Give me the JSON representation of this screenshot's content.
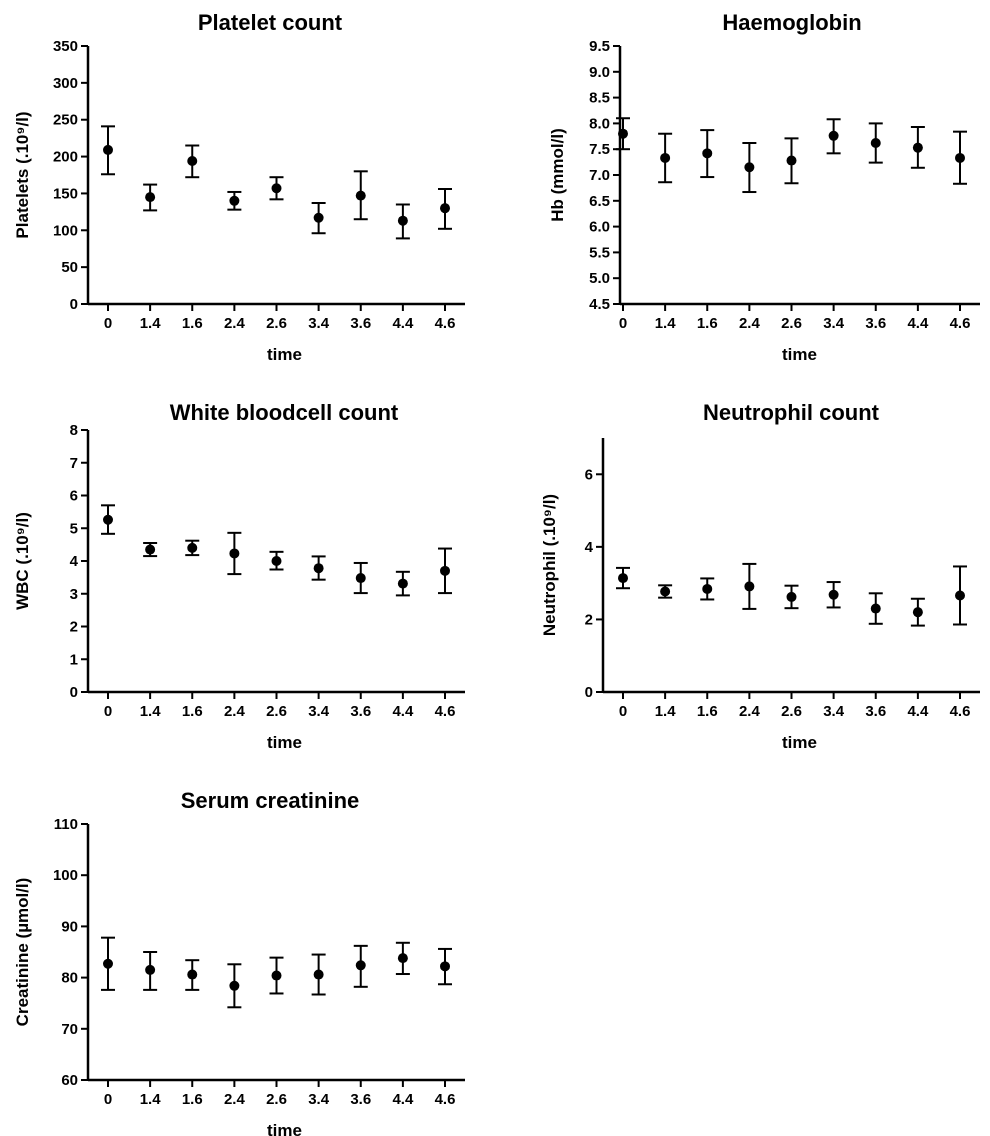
{
  "chart_data": [
    {
      "type": "scatter",
      "title": "Platelet count",
      "xlabel": "time",
      "ylabel": "Platelets (.10⁹/l)",
      "categories": [
        "0",
        "1.4",
        "1.6",
        "2.4",
        "2.6",
        "3.4",
        "3.6",
        "4.4",
        "4.6"
      ],
      "yticks": [
        "0",
        "50",
        "100",
        "150",
        "200",
        "250",
        "300",
        "350"
      ],
      "ylim": [
        0,
        350
      ],
      "values": [
        209,
        145,
        194,
        140,
        157,
        117,
        147,
        113,
        130
      ],
      "err_upper": [
        241,
        162,
        215,
        152,
        172,
        137,
        180,
        135,
        156
      ],
      "err_lower": [
        176,
        127,
        172,
        128,
        142,
        96,
        115,
        89,
        102
      ]
    },
    {
      "type": "scatter",
      "title": "Haemoglobin",
      "xlabel": "time",
      "ylabel": "Hb (mmol/l)",
      "categories": [
        "0",
        "1.4",
        "1.6",
        "2.4",
        "2.6",
        "3.4",
        "3.6",
        "4.4",
        "4.6"
      ],
      "yticks": [
        "4.5",
        "5.0",
        "5.5",
        "6.0",
        "6.5",
        "7.0",
        "7.5",
        "8.0",
        "8.5",
        "9.0",
        "9.5"
      ],
      "ylim": [
        4.5,
        9.5
      ],
      "values": [
        7.8,
        7.33,
        7.42,
        7.15,
        7.28,
        7.76,
        7.62,
        7.53,
        7.33
      ],
      "err_upper": [
        8.1,
        7.8,
        7.87,
        7.62,
        7.71,
        8.08,
        8.0,
        7.93,
        7.84
      ],
      "err_lower": [
        7.5,
        6.86,
        6.96,
        6.67,
        6.84,
        7.42,
        7.24,
        7.14,
        6.83
      ]
    },
    {
      "type": "scatter",
      "title": "White bloodcell count",
      "xlabel": "time",
      "ylabel": "WBC (.10⁹/l)",
      "categories": [
        "0",
        "1.4",
        "1.6",
        "2.4",
        "2.6",
        "3.4",
        "3.6",
        "4.4",
        "4.6"
      ],
      "yticks": [
        "0",
        "1",
        "2",
        "3",
        "4",
        "5",
        "6",
        "7",
        "8"
      ],
      "ylim": [
        0,
        8
      ],
      "values": [
        5.26,
        4.35,
        4.4,
        4.23,
        4.0,
        3.78,
        3.48,
        3.31,
        3.7
      ],
      "err_upper": [
        5.7,
        4.55,
        4.62,
        4.86,
        4.28,
        4.14,
        3.94,
        3.67,
        4.38
      ],
      "err_lower": [
        4.83,
        4.15,
        4.18,
        3.6,
        3.74,
        3.43,
        3.02,
        2.95,
        3.02
      ]
    },
    {
      "type": "scatter",
      "title": "Neutrophil count",
      "xlabel": "time",
      "ylabel": "Neutrophil (.10⁹/l)",
      "categories": [
        "0",
        "1.4",
        "1.6",
        "2.4",
        "2.6",
        "3.4",
        "3.6",
        "4.4",
        "4.6"
      ],
      "yticks": [
        "0",
        "2",
        "4",
        "6"
      ],
      "ylim": [
        0,
        7
      ],
      "values": [
        3.14,
        2.77,
        2.84,
        2.91,
        2.62,
        2.68,
        2.3,
        2.2,
        2.66
      ],
      "err_upper": [
        3.42,
        2.94,
        3.13,
        3.53,
        2.93,
        3.03,
        2.72,
        2.57,
        3.46
      ],
      "err_lower": [
        2.86,
        2.6,
        2.55,
        2.29,
        2.31,
        2.33,
        1.88,
        1.83,
        1.86
      ]
    },
    {
      "type": "scatter",
      "title": "Serum creatinine",
      "xlabel": "time",
      "ylabel": "Creatinine (µmol/l)",
      "categories": [
        "0",
        "1.4",
        "1.6",
        "2.4",
        "2.6",
        "3.4",
        "3.6",
        "4.4",
        "4.6"
      ],
      "yticks": [
        "60",
        "70",
        "80",
        "90",
        "100",
        "110"
      ],
      "ylim": [
        60,
        110
      ],
      "values": [
        82.7,
        81.5,
        80.6,
        78.4,
        80.4,
        80.6,
        82.4,
        83.8,
        82.2
      ],
      "err_upper": [
        87.8,
        85.0,
        83.4,
        82.6,
        83.9,
        84.5,
        86.2,
        86.8,
        85.6
      ],
      "err_lower": [
        77.6,
        77.6,
        77.6,
        74.2,
        76.9,
        76.7,
        78.2,
        80.7,
        78.7
      ]
    }
  ]
}
